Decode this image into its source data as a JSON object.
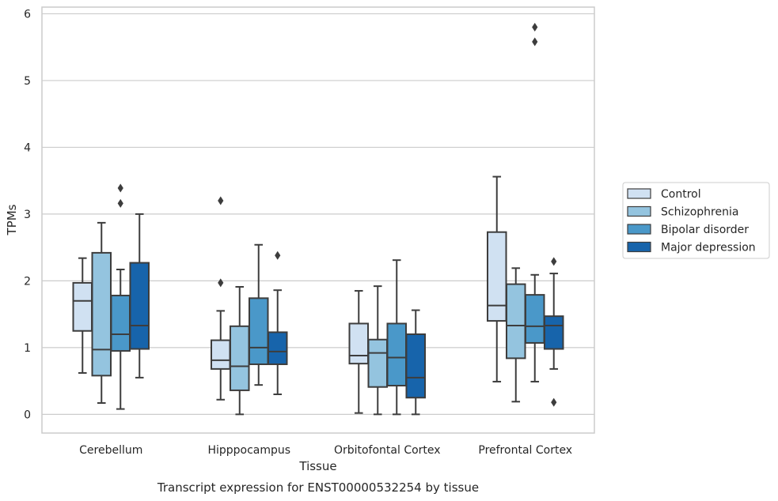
{
  "chart_data": {
    "type": "box",
    "title": "Transcript expression for ENST00000532254 by tissue",
    "xlabel": "Tissue",
    "ylabel": "TPMs",
    "ylim": [
      -0.28,
      6.1
    ],
    "yticks": [
      "0",
      "1",
      "2",
      "3",
      "4",
      "5",
      "6"
    ],
    "grid": true,
    "legend_position": "right",
    "categories": [
      "Cerebellum",
      "Hipppocampus",
      "Orbitofontal Cortex",
      "Prefrontal Cortex"
    ],
    "series": [
      {
        "name": "Control",
        "color": "#d0e1f2",
        "boxes": [
          {
            "whislo": 0.62,
            "q1": 1.25,
            "med": 1.7,
            "q3": 1.97,
            "whishi": 2.34,
            "fliers": []
          },
          {
            "whislo": 0.22,
            "q1": 0.68,
            "med": 0.81,
            "q3": 1.11,
            "whishi": 1.55,
            "fliers": [
              1.97,
              3.2
            ]
          },
          {
            "whislo": 0.02,
            "q1": 0.76,
            "med": 0.88,
            "q3": 1.36,
            "whishi": 1.85,
            "fliers": []
          },
          {
            "whislo": 0.49,
            "q1": 1.4,
            "med": 1.63,
            "q3": 2.73,
            "whishi": 3.56,
            "fliers": []
          }
        ]
      },
      {
        "name": "Schizophrenia",
        "color": "#94c4df",
        "boxes": [
          {
            "whislo": 0.17,
            "q1": 0.58,
            "med": 0.97,
            "q3": 2.42,
            "whishi": 2.87,
            "fliers": []
          },
          {
            "whislo": 0.0,
            "q1": 0.36,
            "med": 0.72,
            "q3": 1.32,
            "whishi": 1.91,
            "fliers": []
          },
          {
            "whislo": 0.0,
            "q1": 0.41,
            "med": 0.92,
            "q3": 1.12,
            "whishi": 1.92,
            "fliers": []
          },
          {
            "whislo": 0.19,
            "q1": 0.84,
            "med": 1.33,
            "q3": 1.95,
            "whishi": 2.19,
            "fliers": []
          }
        ]
      },
      {
        "name": "Bipolar disorder",
        "color": "#4a98c9",
        "boxes": [
          {
            "whislo": 0.08,
            "q1": 0.95,
            "med": 1.2,
            "q3": 1.78,
            "whishi": 2.17,
            "fliers": [
              3.16,
              3.39
            ]
          },
          {
            "whislo": 0.44,
            "q1": 0.75,
            "med": 1.0,
            "q3": 1.74,
            "whishi": 2.54,
            "fliers": []
          },
          {
            "whislo": 0.0,
            "q1": 0.43,
            "med": 0.85,
            "q3": 1.36,
            "whishi": 2.31,
            "fliers": []
          },
          {
            "whislo": 0.49,
            "q1": 1.07,
            "med": 1.32,
            "q3": 1.79,
            "whishi": 2.09,
            "fliers": [
              5.58,
              5.8
            ]
          }
        ]
      },
      {
        "name": "Major depression",
        "color": "#1764ab",
        "boxes": [
          {
            "whislo": 0.55,
            "q1": 0.98,
            "med": 1.33,
            "q3": 2.27,
            "whishi": 3.0,
            "fliers": []
          },
          {
            "whislo": 0.3,
            "q1": 0.75,
            "med": 0.94,
            "q3": 1.23,
            "whishi": 1.86,
            "fliers": [
              2.38
            ]
          },
          {
            "whislo": 0.0,
            "q1": 0.25,
            "med": 0.55,
            "q3": 1.2,
            "whishi": 1.56,
            "fliers": []
          },
          {
            "whislo": 0.68,
            "q1": 0.98,
            "med": 1.33,
            "q3": 1.47,
            "whishi": 2.11,
            "fliers": [
              0.18,
              2.29
            ]
          }
        ]
      }
    ]
  }
}
